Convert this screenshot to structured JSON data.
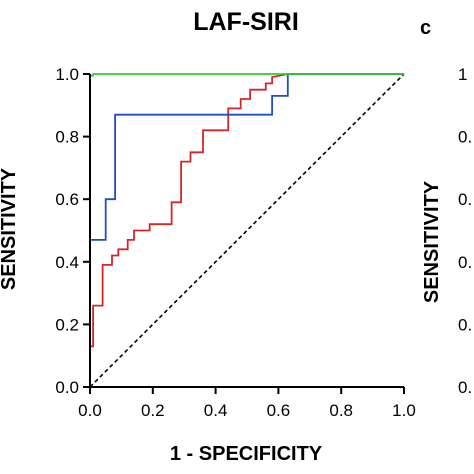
{
  "chart_data": {
    "type": "line",
    "title": "LAF-SIRI",
    "panel_letter": "c",
    "xlabel": "1 - SPECIFICITY",
    "ylabel": "SENSITIVITY",
    "xlim": [
      0,
      1
    ],
    "ylim": [
      0,
      1
    ],
    "x_ticks": [
      "0.0",
      "0.2",
      "0.4",
      "0.6",
      "0.8",
      "1.0"
    ],
    "y_ticks": [
      "0.0",
      "0.2",
      "0.4",
      "0.6",
      "0.8",
      "1.0"
    ],
    "grid": false,
    "reference_line": {
      "x": [
        0,
        1
      ],
      "y": [
        0,
        1
      ],
      "style": "dashed",
      "color": "#000000"
    },
    "series": [
      {
        "color": "#d62728",
        "x": [
          0,
          0,
          0.01,
          0.01,
          0.04,
          0.04,
          0.07,
          0.07,
          0.09,
          0.09,
          0.12,
          0.12,
          0.14,
          0.14,
          0.19,
          0.19,
          0.26,
          0.26,
          0.29,
          0.29,
          0.32,
          0.32,
          0.36,
          0.36,
          0.44,
          0.44,
          0.48,
          0.48,
          0.51,
          0.51,
          0.56,
          0.56,
          0.58,
          0.58,
          0.63,
          1.0
        ],
        "y": [
          0,
          0.13,
          0.13,
          0.26,
          0.26,
          0.39,
          0.39,
          0.42,
          0.42,
          0.44,
          0.44,
          0.47,
          0.47,
          0.5,
          0.5,
          0.52,
          0.52,
          0.59,
          0.59,
          0.72,
          0.72,
          0.75,
          0.75,
          0.82,
          0.82,
          0.89,
          0.89,
          0.92,
          0.92,
          0.95,
          0.95,
          0.97,
          0.97,
          0.99,
          1.0,
          1.0
        ]
      },
      {
        "color": "#1f4fbf",
        "x": [
          0,
          0,
          0.05,
          0.05,
          0.08,
          0.08,
          0.58,
          0.58,
          0.63,
          0.63,
          1.0
        ],
        "y": [
          0,
          0.47,
          0.47,
          0.6,
          0.6,
          0.87,
          0.87,
          0.93,
          0.93,
          1.0,
          1.0
        ]
      },
      {
        "color": "#33cc33",
        "x": [
          0,
          0,
          0.01,
          0.01,
          1.0
        ],
        "y": [
          0,
          0.995,
          0.995,
          1.0,
          1.0
        ]
      }
    ]
  },
  "right_panel_fragment": {
    "ylabel": "SENSITIVITY",
    "tick_fragments": [
      "1",
      "0.",
      "0.",
      "0.",
      "0.",
      "0."
    ]
  }
}
